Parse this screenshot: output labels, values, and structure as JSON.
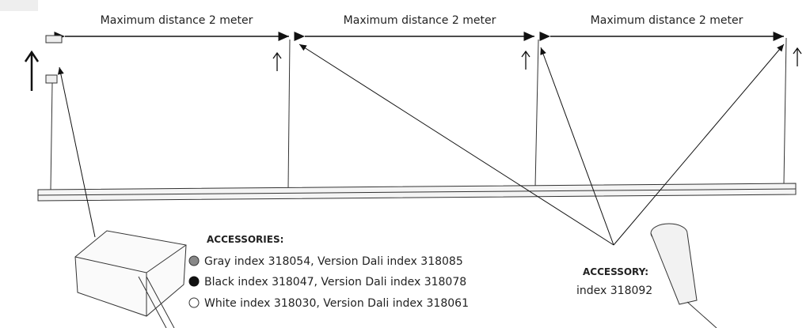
{
  "dimensions": [
    {
      "label": "Maximum distance 2 meter"
    },
    {
      "label": "Maximum distance 2 meter"
    },
    {
      "label": "Maximum distance 2 meter"
    }
  ],
  "accessories": {
    "title": "ACCESSORIES:",
    "items": [
      {
        "color": "gray",
        "label": "Gray index 318054, Version Dali index 318085"
      },
      {
        "color": "black",
        "label": "Black index 318047, Version Dali index 318078"
      },
      {
        "color": "white",
        "label": "White index 318030, Version Dali index 318061"
      }
    ]
  },
  "accessory": {
    "title": "ACCESSORY:",
    "label": "index 318092"
  }
}
